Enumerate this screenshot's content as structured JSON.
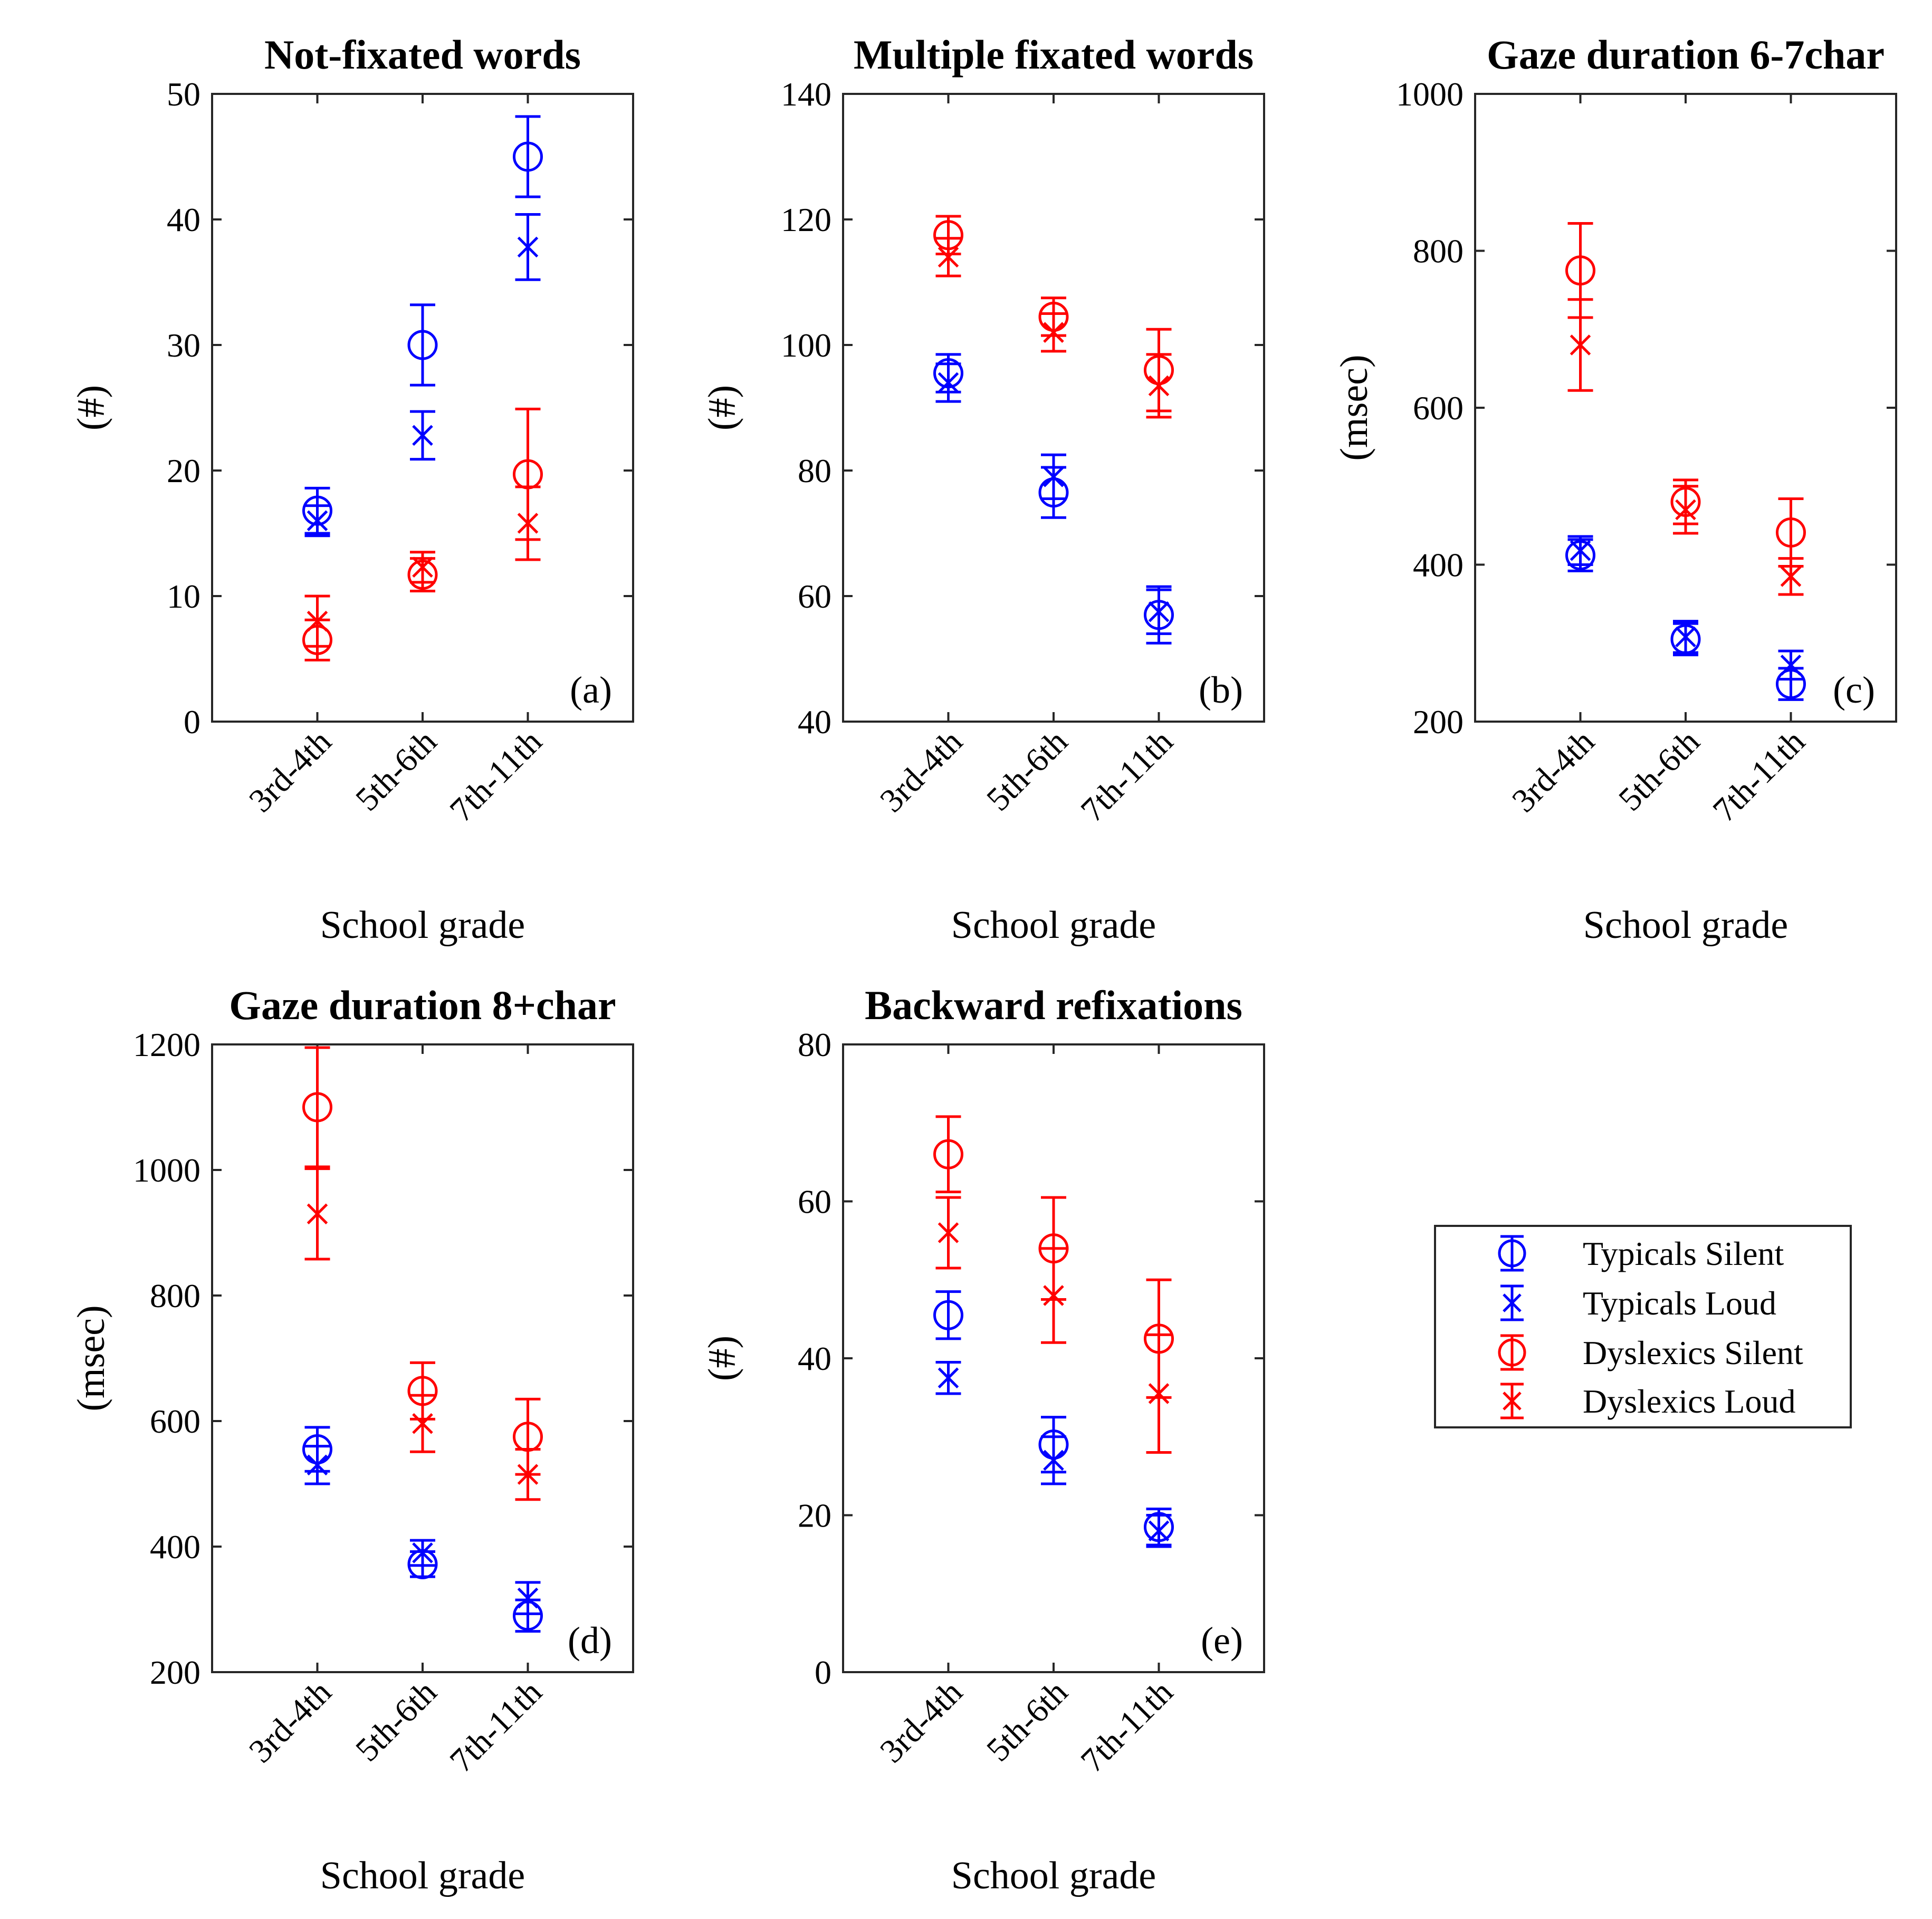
{
  "chart_data": [
    {
      "id": "a",
      "type": "scatter",
      "title": "Not-fixated words",
      "xlabel": "School grade",
      "ylabel": "(#)",
      "panel_label": "(a)",
      "categories": [
        "3rd-4th",
        "5th-6th",
        "7th-11th"
      ],
      "ylim": [
        0,
        50
      ],
      "yticks": [
        0,
        10,
        20,
        30,
        40,
        50
      ],
      "series": [
        {
          "name": "Typicals Silent",
          "color": "#0000ff",
          "marker": "circle",
          "values": [
            16.8,
            30,
            45
          ],
          "err": [
            1.8,
            3.2,
            3.2
          ]
        },
        {
          "name": "Typicals Loud",
          "color": "#0000ff",
          "marker": "x",
          "values": [
            16,
            22.8,
            37.8
          ],
          "err": [
            1.2,
            1.9,
            2.6
          ]
        },
        {
          "name": "Dyslexics Silent",
          "color": "#ff0000",
          "marker": "circle",
          "values": [
            6.5,
            11.7,
            19.7
          ],
          "err": [
            1.6,
            1.3,
            5.2
          ]
        },
        {
          "name": "Dyslexics Loud",
          "color": "#ff0000",
          "marker": "x",
          "values": [
            8,
            12.3,
            15.8
          ],
          "err": [
            2,
            1.2,
            2.9
          ]
        }
      ]
    },
    {
      "id": "b",
      "type": "scatter",
      "title": "Multiple fixated words",
      "xlabel": "School grade",
      "ylabel": "(#)",
      "panel_label": "(b)",
      "categories": [
        "3rd-4th",
        "5th-6th",
        "7th-11th"
      ],
      "ylim": [
        40,
        140
      ],
      "yticks": [
        40,
        60,
        80,
        100,
        120,
        140
      ],
      "series": [
        {
          "name": "Typicals Silent",
          "color": "#0000ff",
          "marker": "circle",
          "values": [
            95.5,
            76.5,
            57
          ],
          "err": [
            3,
            4,
            4.5
          ]
        },
        {
          "name": "Typicals Loud",
          "color": "#0000ff",
          "marker": "x",
          "values": [
            94,
            79,
            57.5
          ],
          "err": [
            3,
            3.5,
            3.5
          ]
        },
        {
          "name": "Dyslexics Silent",
          "color": "#ff0000",
          "marker": "circle",
          "values": [
            117.5,
            104.5,
            96
          ],
          "err": [
            3,
            3,
            6.5
          ]
        },
        {
          "name": "Dyslexics Loud",
          "color": "#ff0000",
          "marker": "x",
          "values": [
            114,
            102,
            93.5
          ],
          "err": [
            3,
            3,
            5
          ]
        }
      ]
    },
    {
      "id": "c",
      "type": "scatter",
      "title": "Gaze duration 6-7char",
      "xlabel": "School grade",
      "ylabel": "(msec)",
      "panel_label": "(c)",
      "categories": [
        "3rd-4th",
        "5th-6th",
        "7th-11th"
      ],
      "ylim": [
        200,
        1000
      ],
      "yticks": [
        200,
        400,
        600,
        800,
        1000
      ],
      "series": [
        {
          "name": "Typicals Silent",
          "color": "#0000ff",
          "marker": "circle",
          "values": [
            412,
            305,
            248
          ],
          "err": [
            20,
            20,
            20
          ]
        },
        {
          "name": "Typicals Loud",
          "color": "#0000ff",
          "marker": "x",
          "values": [
            418,
            308,
            272
          ],
          "err": [
            18,
            20,
            18
          ]
        },
        {
          "name": "Dyslexics Silent",
          "color": "#ff0000",
          "marker": "circle",
          "values": [
            775,
            480,
            441
          ],
          "err": [
            60,
            28,
            43
          ]
        },
        {
          "name": "Dyslexics Loud",
          "color": "#ff0000",
          "marker": "x",
          "values": [
            680,
            470,
            385
          ],
          "err": [
            58,
            30,
            23
          ]
        }
      ]
    },
    {
      "id": "d",
      "type": "scatter",
      "title": "Gaze duration 8+char",
      "xlabel": "School grade",
      "ylabel": "(msec)",
      "panel_label": "(d)",
      "categories": [
        "3rd-4th",
        "5th-6th",
        "7th-11th"
      ],
      "ylim": [
        200,
        1200
      ],
      "yticks": [
        200,
        400,
        600,
        800,
        1000,
        1200
      ],
      "series": [
        {
          "name": "Typicals Silent",
          "color": "#0000ff",
          "marker": "circle",
          "values": [
            555,
            372,
            290
          ],
          "err": [
            35,
            20,
            25
          ]
        },
        {
          "name": "Typicals Loud",
          "color": "#0000ff",
          "marker": "x",
          "values": [
            530,
            390,
            318
          ],
          "err": [
            30,
            20,
            25
          ]
        },
        {
          "name": "Dyslexics Silent",
          "color": "#ff0000",
          "marker": "circle",
          "values": [
            1100,
            648,
            575
          ],
          "err": [
            95,
            45,
            60
          ]
        },
        {
          "name": "Dyslexics Loud",
          "color": "#ff0000",
          "marker": "x",
          "values": [
            930,
            596,
            515
          ],
          "err": [
            72,
            45,
            40
          ]
        }
      ]
    },
    {
      "id": "e",
      "type": "scatter",
      "title": "Backward refixations",
      "xlabel": "School grade",
      "ylabel": "(#)",
      "panel_label": "(e)",
      "categories": [
        "3rd-4th",
        "5th-6th",
        "7th-11th"
      ],
      "ylim": [
        0,
        80
      ],
      "yticks": [
        0,
        20,
        40,
        60,
        80
      ],
      "series": [
        {
          "name": "Typicals Silent",
          "color": "#0000ff",
          "marker": "circle",
          "values": [
            45.5,
            29,
            18.5
          ],
          "err": [
            3,
            3.5,
            2.3
          ]
        },
        {
          "name": "Typicals Loud",
          "color": "#0000ff",
          "marker": "x",
          "values": [
            37.5,
            27,
            18
          ],
          "err": [
            2,
            3,
            2
          ]
        },
        {
          "name": "Dyslexics Silent",
          "color": "#ff0000",
          "marker": "circle",
          "values": [
            66,
            54,
            42.5
          ],
          "err": [
            4.8,
            6.5,
            7.5
          ]
        },
        {
          "name": "Dyslexics Loud",
          "color": "#ff0000",
          "marker": "x",
          "values": [
            56,
            48,
            35.5
          ],
          "err": [
            4.5,
            6,
            7.5
          ]
        }
      ]
    }
  ],
  "legend": {
    "entries": [
      {
        "label": "Typicals Silent",
        "color": "#0000ff",
        "marker": "circle"
      },
      {
        "label": "Typicals Loud",
        "color": "#0000ff",
        "marker": "x"
      },
      {
        "label": "Dyslexics Silent",
        "color": "#ff0000",
        "marker": "circle"
      },
      {
        "label": "Dyslexics Loud",
        "color": "#ff0000",
        "marker": "x"
      }
    ]
  }
}
